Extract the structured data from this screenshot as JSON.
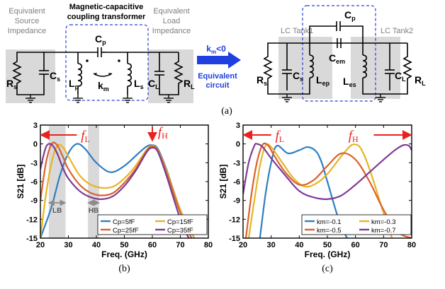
{
  "top": {
    "left": {
      "source_title": [
        "Equivalent",
        "Source",
        "Impedance"
      ],
      "transformer_title": [
        "Magnetic-capacitive",
        "coupling transformer"
      ],
      "load_title": [
        "Equivalent",
        "Load",
        "Impedance"
      ],
      "Rs": "R",
      "Rs_sub": "s",
      "Cs": "C",
      "Cs_sub": "s",
      "Cp": "C",
      "Cp_sub": "p",
      "Lp": "L",
      "Lp_sub": "p",
      "Ls": "L",
      "Ls_sub": "s",
      "km": "k",
      "km_sub": "m",
      "CL": "C",
      "CL_sub": "L",
      "RL": "R",
      "RL_sub": "L"
    },
    "arrow": {
      "cond_k": "k",
      "cond_sub": "m",
      "cond_rest": "<0",
      "label": [
        "Equivalent",
        "circuit"
      ]
    },
    "right": {
      "tank1": "LC Tank1",
      "tank2": "LC Tank2",
      "Cp": "C",
      "Cp_sub": "p",
      "Cem": "C",
      "Cem_sub": "em",
      "Rs": "R",
      "Rs_sub": "s",
      "Cs": "C",
      "Cs_sub": "s",
      "Lep": "L",
      "Lep_sub": "ep",
      "Les": "L",
      "Les_sub": "es",
      "CL": "C",
      "CL_sub": "L",
      "RL": "R",
      "RL_sub": "L"
    },
    "caption": "(a)"
  },
  "colors": {
    "blue_arrow": "#1f3fe0",
    "dash_box": "#2a3fd8",
    "shade": "#d9d9d9",
    "red": "#e8231f",
    "gray_arrow": "#8c8c8c"
  },
  "chart_data": [
    {
      "type": "line",
      "caption": "(b)",
      "xlabel": "Freq. (GHz)",
      "ylabel": "S21 [dB]",
      "xlim": [
        20,
        80
      ],
      "ylim": [
        -15,
        3
      ],
      "xticks": [
        "20",
        "30",
        "40",
        "50",
        "60",
        "70",
        "80"
      ],
      "yticks": [
        "3",
        "0",
        "-3",
        "-6",
        "-9",
        "-12",
        "-15"
      ],
      "annotations": {
        "fL": "f",
        "fL_sub": "L",
        "fH": "f",
        "fH_sub": "H",
        "LB": "LB",
        "HB": "HB"
      },
      "shaded_bands": [
        [
          23,
          29
        ],
        [
          37,
          41
        ]
      ],
      "legend": "bottom-right",
      "series": [
        {
          "name": "Cp=5fF",
          "color": "#2e7fc4",
          "x": [
            20,
            24,
            27,
            30,
            33,
            36,
            40,
            45,
            50,
            55,
            58,
            60,
            62,
            65,
            70,
            75
          ],
          "y": [
            -15,
            -10,
            -5,
            -1.5,
            0,
            -0.8,
            -3,
            -4.5,
            -3.5,
            -1.5,
            -0.4,
            -0.2,
            -0.8,
            -4,
            -10.5,
            -15
          ]
        },
        {
          "name": "Cp=15fF",
          "color": "#e8b324",
          "x": [
            20,
            22,
            24,
            26,
            28,
            30,
            34,
            38,
            42,
            46,
            50,
            54,
            58,
            60,
            62,
            65,
            70,
            75
          ],
          "y": [
            -15,
            -8,
            -3,
            -0.3,
            -0.5,
            -2,
            -5,
            -6.5,
            -7,
            -6.8,
            -5.5,
            -3.5,
            -0.9,
            -0.3,
            -1,
            -4.2,
            -10.5,
            -15
          ]
        },
        {
          "name": "Cp=25fF",
          "color": "#d9622b",
          "x": [
            20,
            22,
            24,
            26,
            28,
            30,
            34,
            38,
            42,
            46,
            50,
            54,
            58,
            60,
            62,
            65,
            70,
            74
          ],
          "y": [
            -9,
            -3,
            0,
            -0.2,
            -2,
            -4,
            -6.5,
            -7.8,
            -8.2,
            -7.8,
            -6.2,
            -4,
            -1.1,
            -0.4,
            -1.1,
            -4.5,
            -11,
            -15
          ]
        },
        {
          "name": "Cp=35fF",
          "color": "#7d3b96",
          "x": [
            20,
            22,
            24,
            26,
            28,
            30,
            34,
            38,
            42,
            46,
            50,
            54,
            58,
            60,
            62,
            65,
            70,
            73
          ],
          "y": [
            -4,
            -0.5,
            -0.1,
            -1.5,
            -3.8,
            -5.5,
            -7.5,
            -8.5,
            -8.8,
            -8.3,
            -6.7,
            -4.3,
            -1.3,
            -0.6,
            -1.3,
            -5,
            -12,
            -15
          ]
        }
      ]
    },
    {
      "type": "line",
      "caption": "(c)",
      "xlabel": "Freq. (GHz)",
      "ylabel": "S21 [dB]",
      "xlim": [
        20,
        80
      ],
      "ylim": [
        -15,
        3
      ],
      "xticks": [
        "20",
        "30",
        "40",
        "50",
        "60",
        "70",
        "80"
      ],
      "yticks": [
        "3",
        "0",
        "-3",
        "-6",
        "-9",
        "-12",
        "-15"
      ],
      "annotations": {
        "fL": "f",
        "fL_sub": "L",
        "fH": "f",
        "fH_sub": "H"
      },
      "legend": "bottom-right",
      "series": [
        {
          "name": "km=-0.1",
          "color": "#2e7fc4",
          "x": [
            26,
            28,
            30,
            32,
            36,
            40,
            43,
            46,
            48,
            50,
            54,
            57
          ],
          "y": [
            -15,
            -8,
            -3,
            -0.3,
            -1.5,
            -1,
            -0.5,
            -1.2,
            -3,
            -6,
            -12,
            -15
          ]
        },
        {
          "name": "km=-0.3",
          "color": "#e8b324",
          "x": [
            22,
            24,
            26,
            28,
            30,
            34,
            38,
            42,
            46,
            50,
            54,
            58,
            60,
            62,
            65,
            70,
            73
          ],
          "y": [
            -15,
            -9,
            -3.5,
            -0.3,
            -0.5,
            -3,
            -5.5,
            -6.8,
            -6.3,
            -4.8,
            -2.5,
            -0.4,
            -0.1,
            -0.8,
            -4,
            -11,
            -15
          ]
        },
        {
          "name": "km=-0.5",
          "color": "#d9622b",
          "x": [
            21,
            23,
            25,
            27,
            29,
            31,
            35,
            40,
            45,
            50,
            55,
            60,
            65,
            70,
            75,
            80
          ],
          "y": [
            -15,
            -8,
            -2.8,
            -0.1,
            -0.3,
            -1.8,
            -4.5,
            -6.5,
            -5.8,
            -3.5,
            -1.5,
            -2.5,
            -6,
            -10.5,
            -14,
            -15
          ]
        },
        {
          "name": "km=-0.7",
          "color": "#7d3b96",
          "x": [
            20,
            22,
            24,
            25,
            27,
            30,
            35,
            40,
            45,
            50,
            55,
            60,
            65,
            70,
            74,
            77,
            79,
            80
          ],
          "y": [
            -8,
            -3,
            -0.3,
            0,
            -0.5,
            -2.3,
            -5,
            -7.5,
            -8.5,
            -8.8,
            -8.2,
            -6.5,
            -4.5,
            -2.5,
            -1,
            -0.2,
            -0.3,
            -1
          ]
        }
      ]
    }
  ]
}
